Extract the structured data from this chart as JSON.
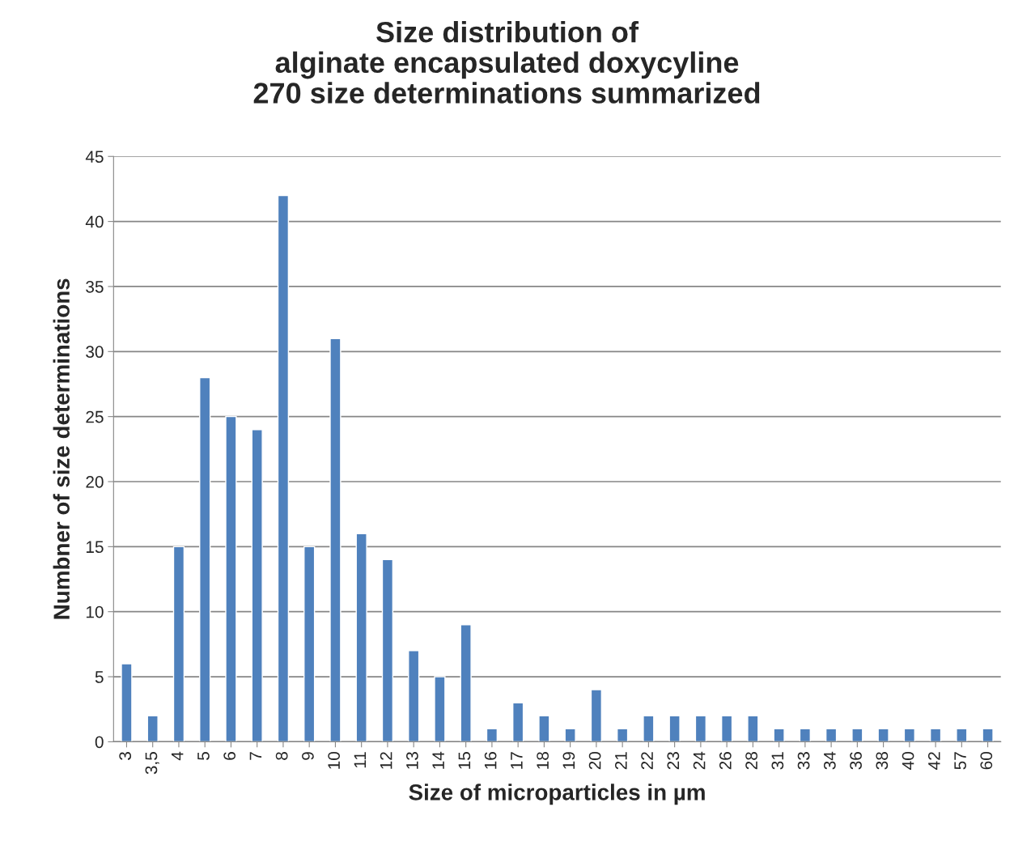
{
  "chart_data": {
    "type": "bar",
    "title": "Size distribution of\nalginate encapsulated doxycyline\n270 size determinations summarized",
    "xlabel": "Size of microparticles in µm",
    "ylabel": "Numbner of size determinations",
    "categories": [
      "3",
      "3,5",
      "4",
      "5",
      "6",
      "7",
      "8",
      "9",
      "10",
      "11",
      "12",
      "13",
      "14",
      "15",
      "16",
      "17",
      "18",
      "19",
      "20",
      "21",
      "22",
      "23",
      "24",
      "26",
      "28",
      "31",
      "33",
      "34",
      "36",
      "38",
      "40",
      "42",
      "57",
      "60"
    ],
    "values": [
      6,
      2,
      15,
      28,
      25,
      24,
      42,
      15,
      31,
      16,
      14,
      7,
      5,
      9,
      1,
      3,
      2,
      1,
      4,
      1,
      2,
      2,
      2,
      2,
      2,
      1,
      1,
      1,
      1,
      1,
      1,
      1,
      1,
      1
    ],
    "color": "#4f81bd",
    "ylim": [
      0,
      45
    ],
    "yticks": [
      0,
      5,
      10,
      15,
      20,
      25,
      30,
      35,
      40,
      45
    ],
    "grid": "y",
    "legend": false
  }
}
